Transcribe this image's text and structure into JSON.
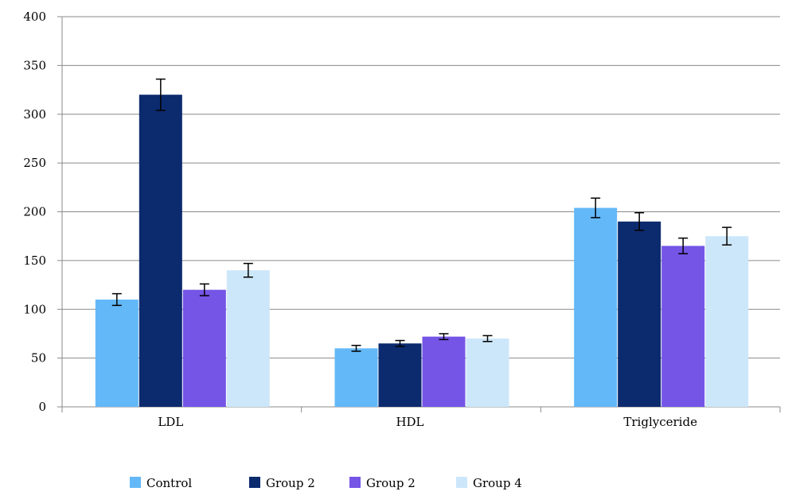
{
  "chart_data": {
    "type": "bar",
    "title": "",
    "xlabel": "",
    "ylabel": "",
    "categories": [
      "LDL",
      "HDL",
      "Triglyceride"
    ],
    "ylim": [
      0,
      400
    ],
    "yticks": [
      0,
      50,
      100,
      150,
      200,
      250,
      300,
      350,
      400
    ],
    "grid": true,
    "legend_position": "bottom",
    "series": [
      {
        "name": "Control",
        "color": "#63b8f7",
        "values": [
          110,
          60,
          204
        ],
        "errors": [
          6,
          3,
          10
        ]
      },
      {
        "name": "Group 2",
        "color": "#0c2a6e",
        "values": [
          320,
          65,
          190
        ],
        "errors": [
          16,
          3,
          9
        ]
      },
      {
        "name": "Group 2",
        "color": "#7455e6",
        "values": [
          120,
          72,
          165
        ],
        "errors": [
          6,
          3,
          8
        ]
      },
      {
        "name": "Group 4",
        "color": "#cde7fa",
        "values": [
          140,
          70,
          175
        ],
        "errors": [
          7,
          3,
          9
        ]
      }
    ]
  }
}
